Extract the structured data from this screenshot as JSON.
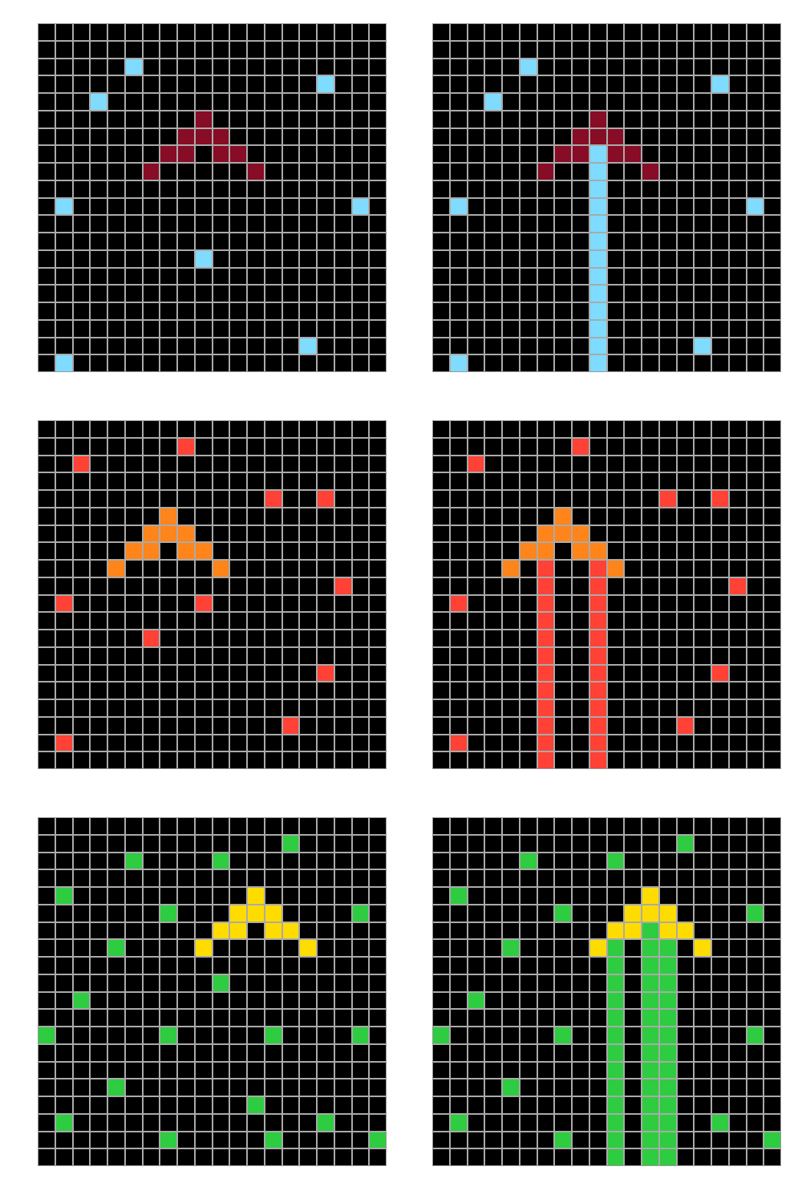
{
  "colors": {
    "background": "#000000",
    "gridline": "#aaaaaa",
    "maroon": "#870c25",
    "skyblue": "#7fdbff",
    "orange": "#ff851b",
    "red": "#ff4136",
    "yellow": "#ffdc00",
    "green": "#2ecc40"
  },
  "grid_size": 20,
  "pairs": [
    {
      "input": {
        "cells": [
          {
            "r": 2,
            "c": 5,
            "color": "skyblue"
          },
          {
            "r": 3,
            "c": 16,
            "color": "skyblue"
          },
          {
            "r": 4,
            "c": 3,
            "color": "skyblue"
          },
          {
            "r": 5,
            "c": 9,
            "color": "maroon"
          },
          {
            "r": 6,
            "c": 8,
            "color": "maroon"
          },
          {
            "r": 6,
            "c": 9,
            "color": "maroon"
          },
          {
            "r": 6,
            "c": 10,
            "color": "maroon"
          },
          {
            "r": 7,
            "c": 7,
            "color": "maroon"
          },
          {
            "r": 7,
            "c": 8,
            "color": "maroon"
          },
          {
            "r": 7,
            "c": 10,
            "color": "maroon"
          },
          {
            "r": 7,
            "c": 11,
            "color": "maroon"
          },
          {
            "r": 8,
            "c": 6,
            "color": "maroon"
          },
          {
            "r": 8,
            "c": 12,
            "color": "maroon"
          },
          {
            "r": 10,
            "c": 1,
            "color": "skyblue"
          },
          {
            "r": 10,
            "c": 18,
            "color": "skyblue"
          },
          {
            "r": 13,
            "c": 9,
            "color": "skyblue"
          },
          {
            "r": 18,
            "c": 15,
            "color": "skyblue"
          },
          {
            "r": 19,
            "c": 1,
            "color": "skyblue"
          }
        ]
      },
      "output": {
        "cells": [
          {
            "r": 2,
            "c": 5,
            "color": "skyblue"
          },
          {
            "r": 3,
            "c": 16,
            "color": "skyblue"
          },
          {
            "r": 4,
            "c": 3,
            "color": "skyblue"
          },
          {
            "r": 5,
            "c": 9,
            "color": "maroon"
          },
          {
            "r": 6,
            "c": 8,
            "color": "maroon"
          },
          {
            "r": 6,
            "c": 9,
            "color": "maroon"
          },
          {
            "r": 6,
            "c": 10,
            "color": "maroon"
          },
          {
            "r": 7,
            "c": 7,
            "color": "maroon"
          },
          {
            "r": 7,
            "c": 8,
            "color": "maroon"
          },
          {
            "r": 7,
            "c": 10,
            "color": "maroon"
          },
          {
            "r": 7,
            "c": 11,
            "color": "maroon"
          },
          {
            "r": 8,
            "c": 6,
            "color": "maroon"
          },
          {
            "r": 8,
            "c": 12,
            "color": "maroon"
          },
          {
            "r": 10,
            "c": 1,
            "color": "skyblue"
          },
          {
            "r": 10,
            "c": 18,
            "color": "skyblue"
          },
          {
            "r": 18,
            "c": 15,
            "color": "skyblue"
          },
          {
            "r": 19,
            "c": 1,
            "color": "skyblue"
          }
        ],
        "columns": [
          {
            "c": 9,
            "from": 7,
            "to": 19,
            "color": "skyblue"
          }
        ]
      }
    },
    {
      "input": {
        "cells": [
          {
            "r": 1,
            "c": 8,
            "color": "red"
          },
          {
            "r": 2,
            "c": 2,
            "color": "red"
          },
          {
            "r": 4,
            "c": 13,
            "color": "red"
          },
          {
            "r": 4,
            "c": 16,
            "color": "red"
          },
          {
            "r": 5,
            "c": 7,
            "color": "orange"
          },
          {
            "r": 6,
            "c": 6,
            "color": "orange"
          },
          {
            "r": 6,
            "c": 7,
            "color": "orange"
          },
          {
            "r": 6,
            "c": 8,
            "color": "orange"
          },
          {
            "r": 7,
            "c": 5,
            "color": "orange"
          },
          {
            "r": 7,
            "c": 6,
            "color": "orange"
          },
          {
            "r": 7,
            "c": 8,
            "color": "orange"
          },
          {
            "r": 7,
            "c": 9,
            "color": "orange"
          },
          {
            "r": 8,
            "c": 4,
            "color": "orange"
          },
          {
            "r": 8,
            "c": 10,
            "color": "orange"
          },
          {
            "r": 9,
            "c": 17,
            "color": "red"
          },
          {
            "r": 10,
            "c": 1,
            "color": "red"
          },
          {
            "r": 10,
            "c": 9,
            "color": "red"
          },
          {
            "r": 12,
            "c": 6,
            "color": "red"
          },
          {
            "r": 14,
            "c": 16,
            "color": "red"
          },
          {
            "r": 17,
            "c": 14,
            "color": "red"
          },
          {
            "r": 18,
            "c": 1,
            "color": "red"
          }
        ]
      },
      "output": {
        "cells": [
          {
            "r": 1,
            "c": 8,
            "color": "red"
          },
          {
            "r": 2,
            "c": 2,
            "color": "red"
          },
          {
            "r": 4,
            "c": 13,
            "color": "red"
          },
          {
            "r": 4,
            "c": 16,
            "color": "red"
          },
          {
            "r": 5,
            "c": 7,
            "color": "orange"
          },
          {
            "r": 6,
            "c": 6,
            "color": "orange"
          },
          {
            "r": 6,
            "c": 7,
            "color": "orange"
          },
          {
            "r": 6,
            "c": 8,
            "color": "orange"
          },
          {
            "r": 7,
            "c": 5,
            "color": "orange"
          },
          {
            "r": 7,
            "c": 6,
            "color": "orange"
          },
          {
            "r": 7,
            "c": 8,
            "color": "orange"
          },
          {
            "r": 7,
            "c": 9,
            "color": "orange"
          },
          {
            "r": 8,
            "c": 4,
            "color": "orange"
          },
          {
            "r": 8,
            "c": 10,
            "color": "orange"
          },
          {
            "r": 9,
            "c": 17,
            "color": "red"
          },
          {
            "r": 10,
            "c": 1,
            "color": "red"
          },
          {
            "r": 14,
            "c": 16,
            "color": "red"
          },
          {
            "r": 17,
            "c": 14,
            "color": "red"
          },
          {
            "r": 18,
            "c": 1,
            "color": "red"
          }
        ],
        "columns": [
          {
            "c": 6,
            "from": 8,
            "to": 19,
            "color": "red"
          },
          {
            "c": 9,
            "from": 8,
            "to": 19,
            "color": "red"
          }
        ]
      }
    },
    {
      "input": {
        "cells": [
          {
            "r": 1,
            "c": 14,
            "color": "green"
          },
          {
            "r": 2,
            "c": 5,
            "color": "green"
          },
          {
            "r": 2,
            "c": 10,
            "color": "green"
          },
          {
            "r": 4,
            "c": 1,
            "color": "green"
          },
          {
            "r": 4,
            "c": 12,
            "color": "yellow"
          },
          {
            "r": 5,
            "c": 7,
            "color": "green"
          },
          {
            "r": 5,
            "c": 11,
            "color": "yellow"
          },
          {
            "r": 5,
            "c": 12,
            "color": "yellow"
          },
          {
            "r": 5,
            "c": 13,
            "color": "yellow"
          },
          {
            "r": 5,
            "c": 18,
            "color": "green"
          },
          {
            "r": 6,
            "c": 10,
            "color": "yellow"
          },
          {
            "r": 6,
            "c": 11,
            "color": "yellow"
          },
          {
            "r": 6,
            "c": 13,
            "color": "yellow"
          },
          {
            "r": 6,
            "c": 14,
            "color": "yellow"
          },
          {
            "r": 7,
            "c": 4,
            "color": "green"
          },
          {
            "r": 7,
            "c": 9,
            "color": "yellow"
          },
          {
            "r": 7,
            "c": 15,
            "color": "yellow"
          },
          {
            "r": 9,
            "c": 10,
            "color": "green"
          },
          {
            "r": 10,
            "c": 2,
            "color": "green"
          },
          {
            "r": 12,
            "c": 0,
            "color": "green"
          },
          {
            "r": 12,
            "c": 7,
            "color": "green"
          },
          {
            "r": 12,
            "c": 13,
            "color": "green"
          },
          {
            "r": 12,
            "c": 18,
            "color": "green"
          },
          {
            "r": 15,
            "c": 4,
            "color": "green"
          },
          {
            "r": 16,
            "c": 12,
            "color": "green"
          },
          {
            "r": 17,
            "c": 1,
            "color": "green"
          },
          {
            "r": 17,
            "c": 16,
            "color": "green"
          },
          {
            "r": 18,
            "c": 7,
            "color": "green"
          },
          {
            "r": 18,
            "c": 13,
            "color": "green"
          },
          {
            "r": 18,
            "c": 19,
            "color": "green"
          }
        ]
      },
      "output": {
        "cells": [
          {
            "r": 1,
            "c": 14,
            "color": "green"
          },
          {
            "r": 2,
            "c": 5,
            "color": "green"
          },
          {
            "r": 2,
            "c": 10,
            "color": "green"
          },
          {
            "r": 4,
            "c": 1,
            "color": "green"
          },
          {
            "r": 4,
            "c": 12,
            "color": "yellow"
          },
          {
            "r": 5,
            "c": 7,
            "color": "green"
          },
          {
            "r": 5,
            "c": 11,
            "color": "yellow"
          },
          {
            "r": 5,
            "c": 12,
            "color": "yellow"
          },
          {
            "r": 5,
            "c": 13,
            "color": "yellow"
          },
          {
            "r": 5,
            "c": 18,
            "color": "green"
          },
          {
            "r": 6,
            "c": 10,
            "color": "yellow"
          },
          {
            "r": 6,
            "c": 11,
            "color": "yellow"
          },
          {
            "r": 6,
            "c": 13,
            "color": "yellow"
          },
          {
            "r": 6,
            "c": 14,
            "color": "yellow"
          },
          {
            "r": 7,
            "c": 4,
            "color": "green"
          },
          {
            "r": 7,
            "c": 9,
            "color": "yellow"
          },
          {
            "r": 7,
            "c": 15,
            "color": "yellow"
          },
          {
            "r": 10,
            "c": 2,
            "color": "green"
          },
          {
            "r": 12,
            "c": 0,
            "color": "green"
          },
          {
            "r": 12,
            "c": 7,
            "color": "green"
          },
          {
            "r": 12,
            "c": 18,
            "color": "green"
          },
          {
            "r": 15,
            "c": 4,
            "color": "green"
          },
          {
            "r": 17,
            "c": 1,
            "color": "green"
          },
          {
            "r": 17,
            "c": 16,
            "color": "green"
          },
          {
            "r": 18,
            "c": 7,
            "color": "green"
          },
          {
            "r": 18,
            "c": 19,
            "color": "green"
          }
        ],
        "columns": [
          {
            "c": 10,
            "from": 7,
            "to": 19,
            "color": "green"
          },
          {
            "c": 12,
            "from": 6,
            "to": 19,
            "color": "green"
          },
          {
            "c": 13,
            "from": 7,
            "to": 19,
            "color": "green"
          }
        ]
      }
    }
  ]
}
